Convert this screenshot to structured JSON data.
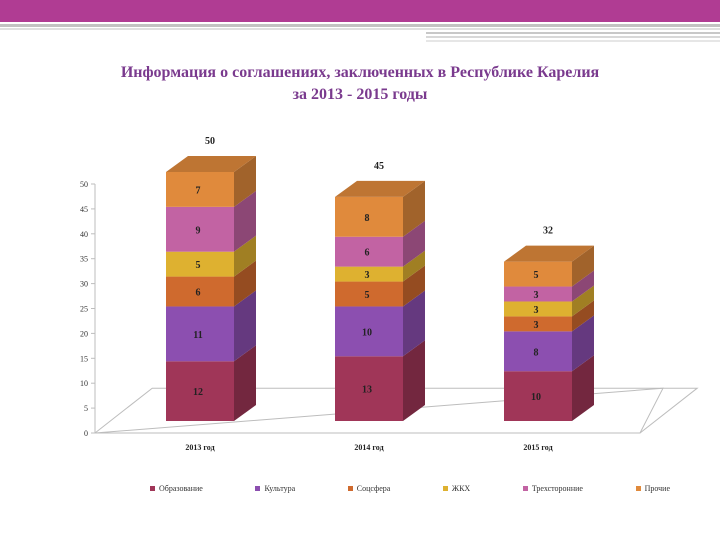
{
  "slide": {
    "title_line1": "Информация о соглашениях, заключенных в Республике Карелия",
    "title_line2": "за 2013 - 2015 годы"
  },
  "chart_data": {
    "type": "bar",
    "stacked": true,
    "title": "Информация о соглашениях, заключенных в Республике Карелия за 2013 - 2015 годы",
    "categories": [
      "2013 год",
      "2014 год",
      "2015 год"
    ],
    "totals": [
      50,
      45,
      32
    ],
    "ylim": [
      0,
      50
    ],
    "yticks": [
      0,
      5,
      10,
      15,
      20,
      25,
      30,
      35,
      40,
      45,
      50
    ],
    "legend_position": "bottom",
    "series": [
      {
        "name": "Образование",
        "values": [
          12,
          13,
          10
        ],
        "color": "#a03658"
      },
      {
        "name": "Культура",
        "values": [
          11,
          10,
          8
        ],
        "color": "#8c4fb0"
      },
      {
        "name": "Соцсфера",
        "values": [
          6,
          5,
          3
        ],
        "color": "#cf6a2e"
      },
      {
        "name": "ЖКХ",
        "values": [
          5,
          3,
          3
        ],
        "color": "#deb130"
      },
      {
        "name": "Трехсторонние",
        "values": [
          9,
          6,
          3
        ],
        "color": "#c263a3"
      },
      {
        "name": "Прочие",
        "values": [
          7,
          8,
          5
        ],
        "color": "#e08a3c"
      }
    ]
  }
}
